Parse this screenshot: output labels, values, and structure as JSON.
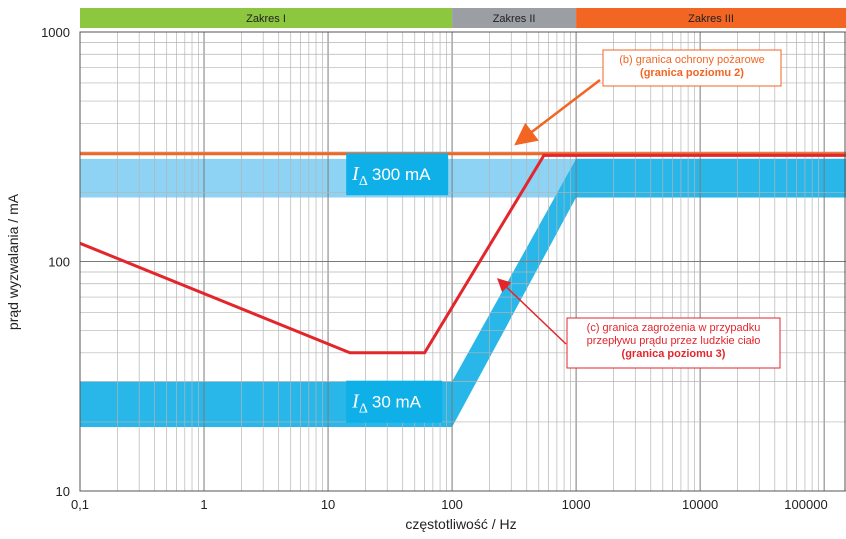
{
  "chart_data": {
    "type": "line",
    "x_scale": "log",
    "y_scale": "log",
    "xlim": [
      0.1,
      150000
    ],
    "ylim": [
      10,
      1000
    ],
    "xlabel": "częstotliwość / Hz",
    "ylabel": "prąd wyzwalania / mA",
    "x_ticks": [
      {
        "value": 0.1,
        "label": "0,1"
      },
      {
        "value": 1,
        "label": "1"
      },
      {
        "value": 10,
        "label": "10"
      },
      {
        "value": 100,
        "label": "100"
      },
      {
        "value": 1000,
        "label": "1000"
      },
      {
        "value": 10000,
        "label": "10000"
      },
      {
        "value": 100000,
        "label": "100000"
      }
    ],
    "y_ticks": [
      {
        "value": 10,
        "label": "10"
      },
      {
        "value": 100,
        "label": "100"
      },
      {
        "value": 1000,
        "label": "1000"
      }
    ],
    "grid": true,
    "zones": [
      {
        "label": "Zakres I",
        "from": 0.1,
        "to": 100,
        "color": "#8dc63f"
      },
      {
        "label": "Zakres II",
        "from": 100,
        "to": 1000,
        "color": "#9b9ea3"
      },
      {
        "label": "Zakres III",
        "from": 1000,
        "to": 150000,
        "color": "#f26522"
      }
    ],
    "bands": [
      {
        "id": "band300",
        "label_italic": "I",
        "label_sub": "Δ",
        "label_text": "300 mA",
        "color": "#8fd3f4",
        "color_strong": "#0fb0e8",
        "upper": [
          [
            0.1,
            280
          ],
          [
            150000,
            280
          ]
        ],
        "lower": [
          [
            0.1,
            190
          ],
          [
            150000,
            190
          ]
        ],
        "strong_from": 1000
      },
      {
        "id": "band30",
        "label_italic": "I",
        "label_sub": "Δ",
        "label_text": "30 mA",
        "color": "#29b6e8",
        "color_strong": "#29b6e8",
        "upper": [
          [
            0.1,
            30
          ],
          [
            100,
            30
          ],
          [
            1000,
            280
          ],
          [
            150000,
            280
          ]
        ],
        "lower": [
          [
            0.1,
            19
          ],
          [
            100,
            19
          ],
          [
            1000,
            190
          ],
          [
            150000,
            190
          ]
        ]
      }
    ],
    "series": [
      {
        "id": "fire",
        "color": "#f26522",
        "points": [
          [
            0.1,
            295
          ],
          [
            150000,
            295
          ]
        ]
      },
      {
        "id": "body",
        "color": "#e3262c",
        "points": [
          [
            0.1,
            120
          ],
          [
            15,
            40
          ],
          [
            60,
            40
          ],
          [
            550,
            290
          ],
          [
            150000,
            290
          ]
        ]
      }
    ],
    "annotations": [
      {
        "id": "fire-note",
        "lines": [
          "(b) granica ochrony pożarowe"
        ],
        "bold_line": "(granica poziomu 2)",
        "border_color": "#f26522",
        "text_color": "#f26522"
      },
      {
        "id": "body-note",
        "lines": [
          "(c) granica zagrożenia w przypadku",
          "przepływu prądu przez ludzkie ciało"
        ],
        "bold_line": "(granica poziomu 3)",
        "border_color": "#e3262c",
        "text_color": "#e3262c"
      }
    ]
  }
}
